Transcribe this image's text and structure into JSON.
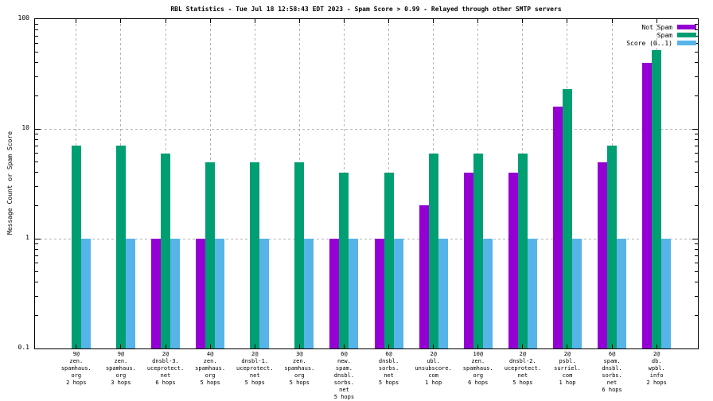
{
  "title": "RBL Statistics - Tue Jul 18 12:58:43 EDT 2023 - Spam Score > 0.99 - Relayed through other SMTP servers",
  "yaxis": {
    "label": "Message Count or Spam Score",
    "ticks": [
      {
        "label": "100",
        "value": 100
      },
      {
        "label": "10",
        "value": 10
      },
      {
        "label": "1",
        "value": 1
      },
      {
        "label": "0.1",
        "value": 0.1
      }
    ]
  },
  "legend": [
    {
      "label": "Not Spam"
    },
    {
      "label": "Spam"
    },
    {
      "label": "Score (0..1)"
    }
  ],
  "colors": {
    "not_spam": "#9400d3",
    "spam": "#009e73",
    "score": "#56b4e9",
    "grid": "#b4b4b4",
    "axis": "#000000",
    "background": "#ffffff"
  },
  "chart_data": {
    "type": "bar",
    "y_scale": "log",
    "ylim": [
      0.1,
      100
    ],
    "grid": true,
    "grid_y_values": [
      1,
      10
    ],
    "legend_position": "top-right",
    "title": "RBL Statistics - Tue Jul 18 12:58:43 EDT 2023 - Spam Score > 0.99 - Relayed through other SMTP servers",
    "ylabel": "Message Count or Spam Score",
    "categories": [
      [
        "9@",
        "zen.",
        "spamhaus.",
        "org",
        "2 hops"
      ],
      [
        "9@",
        "zen.",
        "spamhaus.",
        "org",
        "3 hops"
      ],
      [
        "2@",
        "dnsbl-3.",
        "uceprotect.",
        "net",
        "6 hops"
      ],
      [
        "4@",
        "zen.",
        "spamhaus.",
        "org",
        "5 hops"
      ],
      [
        "2@",
        "dnsbl-1.",
        "uceprotect.",
        "net",
        "5 hops"
      ],
      [
        "3@",
        "zen.",
        "spamhaus.",
        "org",
        "5 hops"
      ],
      [
        "6@",
        "new.",
        "spam.",
        "dnsbl.",
        "sorbs.",
        "net",
        "5 hops"
      ],
      [
        "6@",
        "dnsbl.",
        "sorbs.",
        "net",
        "5 hops"
      ],
      [
        "2@",
        "ubl.",
        "unsubscore.",
        "com",
        "1 hop"
      ],
      [
        "10@",
        "zen.",
        "spamhaus.",
        "org",
        "6 hops"
      ],
      [
        "2@",
        "dnsbl-2.",
        "uceprotect.",
        "net",
        "5 hops"
      ],
      [
        "2@",
        "psbl.",
        "surriel.",
        "com",
        "1 hop"
      ],
      [
        "6@",
        "spam.",
        "dnsbl.",
        "sorbs.",
        "net",
        "6 hops"
      ],
      [
        "2@",
        "db.",
        "wpbl.",
        "info",
        "2 hops"
      ]
    ],
    "series": [
      {
        "name": "Not Spam",
        "color": "#9400d3",
        "values": [
          null,
          null,
          1,
          1,
          null,
          null,
          1,
          1,
          2,
          4,
          4,
          16,
          5,
          40
        ]
      },
      {
        "name": "Spam",
        "color": "#009e73",
        "values": [
          7,
          7,
          6,
          5,
          5,
          5,
          4,
          4,
          6,
          6,
          6,
          23,
          7,
          52
        ]
      },
      {
        "name": "Score (0..1)",
        "color": "#56b4e9",
        "values": [
          1,
          1,
          1,
          1,
          1,
          1,
          1,
          1,
          1,
          1,
          1,
          1,
          1,
          1
        ]
      }
    ]
  }
}
